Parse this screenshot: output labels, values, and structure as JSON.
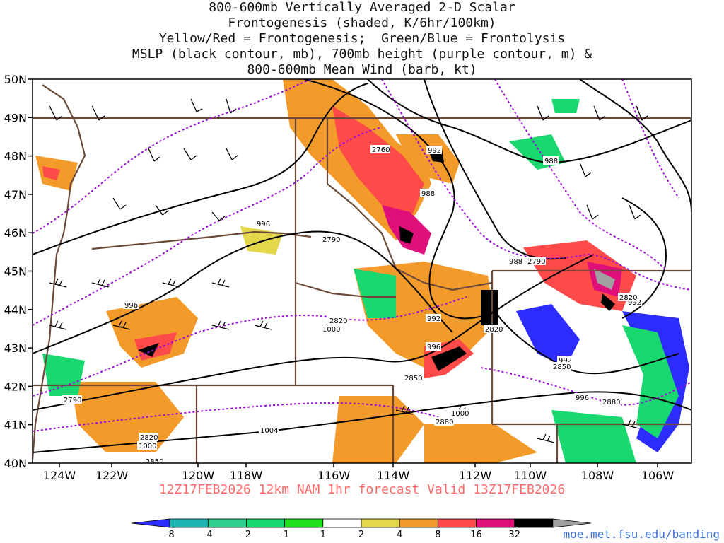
{
  "title": {
    "line1": "800-600mb Vertically Averaged 2-D Scalar",
    "line2": "Frontogenesis (shaded, K/6hr/100km)",
    "line3": "Yellow/Red = Frontogenesis;  Green/Blue = Frontolysis",
    "line4": "MSLP (black contour, mb), 700mb height (purple contour, m) &",
    "line5": "800-600mb Mean Wind (barb, kt)"
  },
  "footer": "12Z17FEB2026 12km NAM 1hr forecast Valid 13Z17FEB2026",
  "url": "moe.met.fsu.edu/banding",
  "lat_labels": [
    "50N",
    "49N",
    "48N",
    "47N",
    "46N",
    "45N",
    "44N",
    "43N",
    "42N",
    "41N",
    "40N"
  ],
  "lon_labels": [
    "124W",
    "122W",
    "120W",
    "118W",
    "116W",
    "114W",
    "112W",
    "110W",
    "108W",
    "106W"
  ],
  "colorbar": {
    "labels": [
      "-8",
      "-4",
      "-2",
      "-1",
      "1",
      "2",
      "4",
      "8",
      "16",
      "32"
    ],
    "colors": [
      "#2c2cff",
      "#1fb3b3",
      "#2fcf8f",
      "#19d870",
      "#1ee01e",
      "#ffffff",
      "#e3d84a",
      "#f29a2a",
      "#ff4a4a",
      "#e0107a",
      "#000000",
      "#a0a0a0"
    ]
  },
  "mslp_labels": [
    "992",
    "988",
    "996",
    "996",
    "988",
    "992",
    "996",
    "1000",
    "992",
    "996",
    "1000",
    "1004",
    "1000",
    "988",
    "992"
  ],
  "height_labels": [
    "2760",
    "2790",
    "2790",
    "2820",
    "2820",
    "2850",
    "2850",
    "2880",
    "2820",
    "2790",
    "2820",
    "2850",
    "2880"
  ],
  "chart_data": {
    "type": "map",
    "extent": {
      "lon_min": -125,
      "lon_max": -105,
      "lat_min": 40,
      "lat_max": 50
    },
    "fields": [
      "frontogenesis (shaded)",
      "MSLP (black contours)",
      "700mb height (purple contours)",
      "800-600mb mean wind (barbs)"
    ]
  }
}
